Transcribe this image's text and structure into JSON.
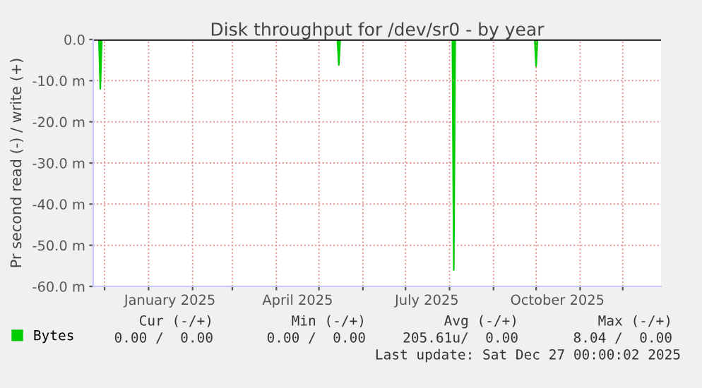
{
  "chart_data": {
    "type": "area",
    "title": "Disk throughput for /dev/sr0 - by year",
    "ylabel": "Pr second read (-) / write (+)",
    "x": [
      "2024-11-23",
      "2024-11-27",
      "2024-11-28",
      "2024-11-29",
      "2025-05-14",
      "2025-05-15",
      "2025-05-16",
      "2025-08-03",
      "2025-08-04",
      "2025-08-05",
      "2025-09-30",
      "2025-10-01",
      "2025-10-02",
      "2025-12-28"
    ],
    "series": [
      {
        "name": "Bytes",
        "color": "#00cc00",
        "values": [
          0,
          0,
          -12,
          0,
          0,
          -6.2,
          0,
          0,
          -56,
          0,
          0,
          -6.5,
          0,
          0
        ]
      }
    ],
    "xlim": [
      "2024-11-23",
      "2025-12-28"
    ],
    "xticks": [
      {
        "value": "2024-12-01",
        "label": null
      },
      {
        "value": "2025-01-01",
        "label": null
      },
      {
        "value": "2025-01-16",
        "label": "January 2025"
      },
      {
        "value": "2025-02-01",
        "label": null
      },
      {
        "value": "2025-03-01",
        "label": null
      },
      {
        "value": "2025-04-01",
        "label": null
      },
      {
        "value": "2025-04-16",
        "label": "April 2025"
      },
      {
        "value": "2025-05-01",
        "label": null
      },
      {
        "value": "2025-06-01",
        "label": null
      },
      {
        "value": "2025-07-01",
        "label": null
      },
      {
        "value": "2025-07-16",
        "label": "July 2025"
      },
      {
        "value": "2025-08-01",
        "label": null
      },
      {
        "value": "2025-09-01",
        "label": null
      },
      {
        "value": "2025-10-01",
        "label": null
      },
      {
        "value": "2025-10-16",
        "label": "October 2025"
      },
      {
        "value": "2025-11-01",
        "label": null
      },
      {
        "value": "2025-12-01",
        "label": null
      }
    ],
    "ylim": [
      -60,
      0
    ],
    "yticks": [
      {
        "value": -60,
        "label": "-60.0 m"
      },
      {
        "value": -50,
        "label": "-50.0 m"
      },
      {
        "value": -40,
        "label": "-40.0 m"
      },
      {
        "value": -30,
        "label": "-30.0 m"
      },
      {
        "value": -20,
        "label": "-20.0 m"
      },
      {
        "value": -10,
        "label": "-10.0 m"
      },
      {
        "value": 0,
        "label": "0.0"
      }
    ],
    "ref_lines": [
      {
        "axis": "y",
        "value": 0,
        "color": "#000000"
      }
    ],
    "grid": true,
    "legend": "bottom left",
    "annotations": [
      "Cur (-/+)",
      "Min (-/+)",
      "Avg (-/+)",
      "Max (-/+)",
      "0.00 /  0.00",
      "0.00 /  0.00",
      "205.61u/  0.00",
      "8.04 /  0.00",
      "Last update: Sat Dec 27 00:00:02 2025"
    ]
  }
}
